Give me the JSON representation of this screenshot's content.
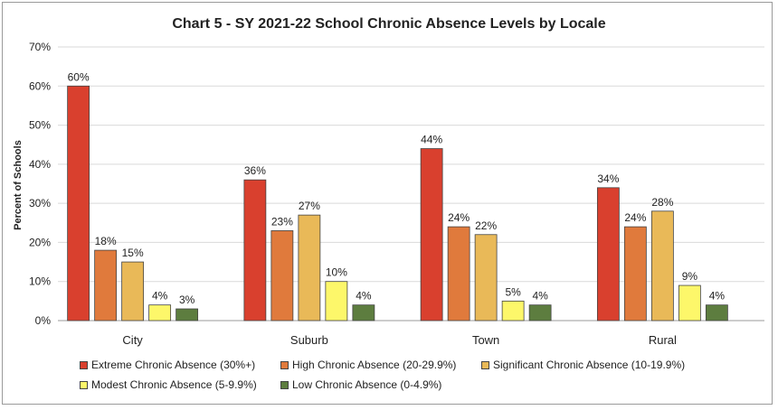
{
  "chart_data": {
    "type": "bar",
    "title": "Chart 5 - SY 2021-22 School Chronic Absence Levels by Locale",
    "xlabel": "",
    "ylabel": "Percent of Schools",
    "ylim": [
      0,
      70
    ],
    "yticks": [
      "0%",
      "10%",
      "20%",
      "30%",
      "40%",
      "50%",
      "60%",
      "70%"
    ],
    "categories": [
      "City",
      "Suburb",
      "Town",
      "Rural"
    ],
    "grid": true,
    "legend_position": "bottom",
    "series": [
      {
        "name": "Extreme Chronic Absence (30%+)",
        "color": "#d9402e",
        "values": [
          60,
          36,
          44,
          34
        ],
        "labels": [
          "60%",
          "36%",
          "44%",
          "34%"
        ]
      },
      {
        "name": "High Chronic Absence (20-29.9%)",
        "color": "#e07a3c",
        "values": [
          18,
          23,
          24,
          24
        ],
        "labels": [
          "18%",
          "23%",
          "24%",
          "24%"
        ]
      },
      {
        "name": "Significant Chronic Absence (10-19.9%)",
        "color": "#e9b958",
        "values": [
          15,
          27,
          22,
          28
        ],
        "labels": [
          "15%",
          "27%",
          "22%",
          "28%"
        ]
      },
      {
        "name": "Modest Chronic Absence (5-9.9%)",
        "color": "#fdf76a",
        "values": [
          4,
          10,
          5,
          9
        ],
        "labels": [
          "4%",
          "10%",
          "5%",
          "9%"
        ]
      },
      {
        "name": "Low Chronic Absence (0-4.9%)",
        "color": "#5d7d3f",
        "values": [
          3,
          4,
          4,
          4
        ],
        "labels": [
          "3%",
          "4%",
          "4%",
          "4%"
        ]
      }
    ]
  }
}
